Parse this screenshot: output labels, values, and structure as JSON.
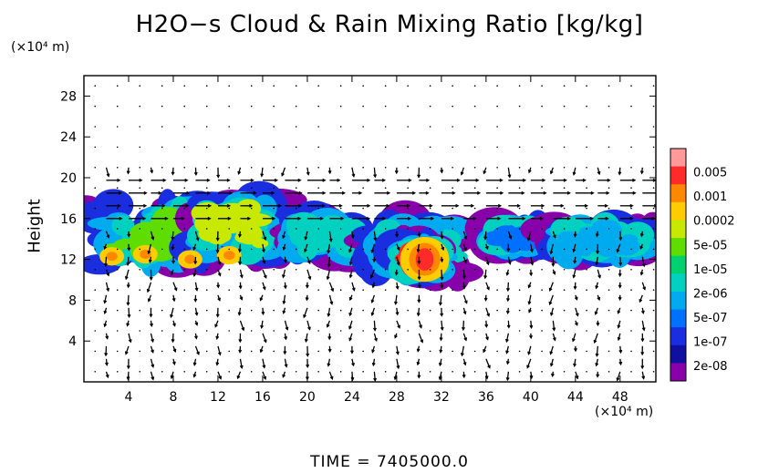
{
  "chart_data": {
    "type": "heatmap",
    "title": "H2O−s Cloud & Rain Mixing Ratio [kg/kg]",
    "ylabel": "Height",
    "x_unit_label": "(×10⁴ m)",
    "y_unit_label": "(×10⁴ m)",
    "footer": "TIME  =  7405000.0",
    "xlim": [
      0,
      51.2
    ],
    "ylim": [
      0,
      30
    ],
    "x_ticks": [
      4,
      8,
      12,
      16,
      20,
      24,
      28,
      32,
      36,
      40,
      44,
      48
    ],
    "y_ticks": [
      4,
      8,
      12,
      16,
      20,
      24,
      28
    ],
    "colorbar": {
      "labels": [
        "0.005",
        "0.001",
        "0.0002",
        "5e-05",
        "1e-05",
        "2e-06",
        "5e-07",
        "1e-07",
        "2e-08"
      ],
      "colors": [
        "#ff9a9a",
        "#ff2a2a",
        "#ff8800",
        "#ffcc00",
        "#c8e800",
        "#5fdc00",
        "#00d070",
        "#00d0c0",
        "#00aaee",
        "#0070ff",
        "#1a2ee0",
        "#1010a0",
        "#8800aa"
      ]
    },
    "cloud_regions": [
      {
        "x0": 0,
        "x1": 12,
        "y0": 10.5,
        "y1": 18.5,
        "level": "1e-05",
        "color": "#5fdc00"
      },
      {
        "x0": 9,
        "x1": 18,
        "y0": 11,
        "y1": 19.5,
        "level": "5e-05",
        "color": "#c8e800"
      },
      {
        "x0": 18,
        "x1": 25,
        "y0": 12,
        "y1": 16.5,
        "level": "2e-06",
        "color": "#00d0c0"
      },
      {
        "x0": 25,
        "x1": 34,
        "y0": 10,
        "y1": 16.5,
        "level": "5e-07",
        "color": "#00aaee"
      },
      {
        "x0": 28,
        "x1": 32,
        "y0": 10,
        "y1": 14,
        "level": "0.001",
        "color": "#ff2a2a"
      },
      {
        "x0": 36,
        "x1": 41,
        "y0": 13,
        "y1": 15.5,
        "level": "1e-07",
        "color": "#0070ff"
      },
      {
        "x0": 41,
        "x1": 51.2,
        "y0": 12,
        "y1": 16,
        "level": "5e-07",
        "color": "#00aaee"
      }
    ],
    "maximum_value_region": {
      "x": 30.5,
      "y": 12,
      "level": "0.001"
    },
    "wind_vectors": "shown as arrows on regular grid"
  }
}
